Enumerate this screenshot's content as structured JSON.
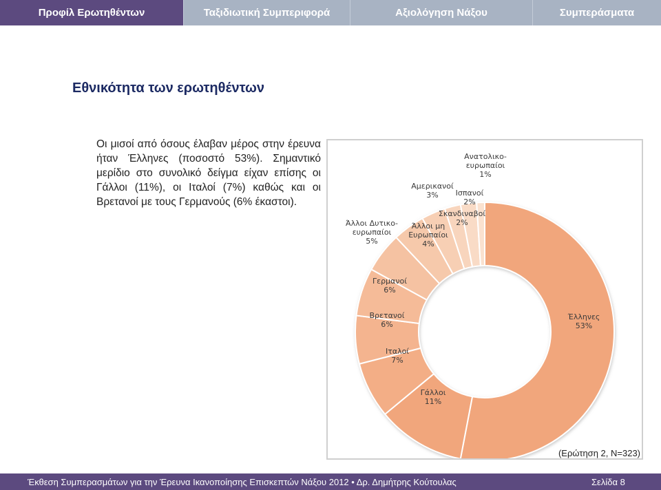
{
  "tabs": [
    {
      "label": "Προφίλ Ερωτηθέντων",
      "active": true
    },
    {
      "label": "Ταξιδιωτική Συμπεριφορά",
      "active": false
    },
    {
      "label": "Αξιολόγηση Νάξου",
      "active": false
    },
    {
      "label": "Συμπεράσματα",
      "active": false
    }
  ],
  "slide": {
    "title": "Εθνικότητα των ερωτηθέντων",
    "description": "Οι μισοί από όσους έλαβαν μέρος στην έρευνα ήταν Έλληνες (ποσοστό 53%). Σημαντικό μερίδιο στο συνολικό δείγμα είχαν επίσης οι Γάλλοι (11%), οι Ιταλοί (7%) καθώς και οι Βρετανοί με τους Γερμανούς (6% έκαστοι).",
    "note": "(Ερώτηση 2, Ν=323)"
  },
  "chart_data": {
    "type": "pie",
    "variant": "donut",
    "slices": [
      {
        "label": [
          "Έλληνες"
        ],
        "pct": "53%",
        "value": 53,
        "color": "#f1a67b"
      },
      {
        "label": [
          "Γάλλοι"
        ],
        "pct": "11%",
        "value": 11,
        "color": "#f1a67b"
      },
      {
        "label": [
          "Ιταλοί"
        ],
        "pct": "7%",
        "value": 7,
        "color": "#f3ae86"
      },
      {
        "label": [
          "Βρετανοί"
        ],
        "pct": "6%",
        "value": 6,
        "color": "#f4b48f"
      },
      {
        "label": [
          "Γερμανοί"
        ],
        "pct": "6%",
        "value": 6,
        "color": "#f5bb98"
      },
      {
        "label": [
          "Άλλοι Δυτικο-",
          "ευρωπαίοι"
        ],
        "pct": "5%",
        "value": 5,
        "color": "#f5c2a2"
      },
      {
        "label": [
          "Άλλοι μη",
          "Ευρωπαίοι"
        ],
        "pct": "4%",
        "value": 4,
        "color": "#f6c9ab"
      },
      {
        "label": [
          "Αμερικανοί"
        ],
        "pct": "3%",
        "value": 3,
        "color": "#f7cfb4"
      },
      {
        "label": [
          "Ισπανοί"
        ],
        "pct": "2%",
        "value": 2,
        "color": "#f8d5bd"
      },
      {
        "label": [
          "Σκανδιναβοί"
        ],
        "pct": "2%",
        "value": 2,
        "color": "#f9dbc6"
      },
      {
        "label": [
          "Ανατολικο-",
          "ευρωπαίοι"
        ],
        "pct": "1%",
        "value": 1,
        "color": "#fae1cf"
      }
    ]
  },
  "footer": {
    "text": "Έκθεση Συμπερασμάτων για την Έρευνα Ικανοποίησης Επισκεπτών Νάξου 2012 • Δρ. Δημήτρης Κούτουλας",
    "page": "Σελίδα 8"
  }
}
